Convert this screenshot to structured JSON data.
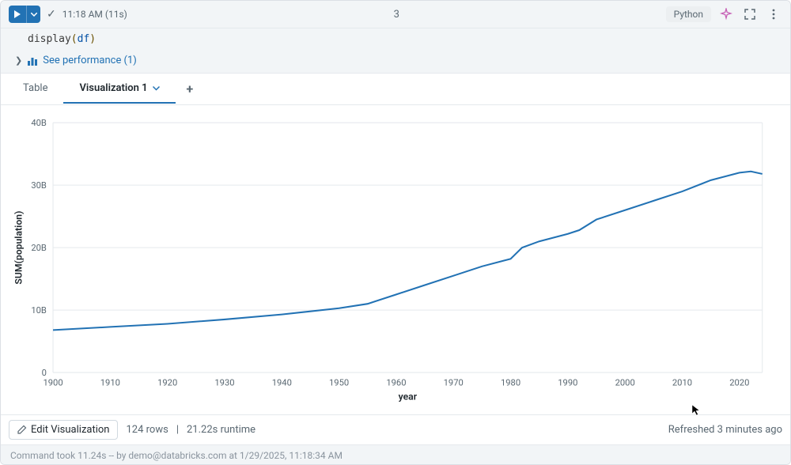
{
  "header": {
    "time_label": "11:18 AM (11s)",
    "cell_index": "3",
    "language": "Python"
  },
  "code": {
    "fn": "display",
    "arg": "df"
  },
  "performance": {
    "label": "See performance (1)"
  },
  "tabs": {
    "table": "Table",
    "viz1": "Visualization 1"
  },
  "chart": {
    "type": "line",
    "xlabel": "year",
    "ylabel": "SUM(population)",
    "line_color": "#2272b4",
    "line_width": 2,
    "grid_color": "#e5e9ed",
    "axis_color": "#b0b8bf",
    "background_color": "#ffffff",
    "xlim": [
      1900,
      2024
    ],
    "ylim": [
      0,
      40
    ],
    "y_unit": "B",
    "xticks": [
      1900,
      1910,
      1920,
      1930,
      1940,
      1950,
      1960,
      1970,
      1980,
      1990,
      2000,
      2010,
      2020
    ],
    "yticks": [
      0,
      10,
      20,
      30,
      40
    ],
    "ytick_labels": [
      "0",
      "10B",
      "20B",
      "30B",
      "40B"
    ],
    "data": [
      {
        "x": 1900,
        "y": 6.8
      },
      {
        "x": 1910,
        "y": 7.3
      },
      {
        "x": 1920,
        "y": 7.8
      },
      {
        "x": 1930,
        "y": 8.5
      },
      {
        "x": 1940,
        "y": 9.3
      },
      {
        "x": 1950,
        "y": 10.3
      },
      {
        "x": 1955,
        "y": 11.0
      },
      {
        "x": 1960,
        "y": 12.5
      },
      {
        "x": 1965,
        "y": 14.0
      },
      {
        "x": 1970,
        "y": 15.5
      },
      {
        "x": 1975,
        "y": 17.0
      },
      {
        "x": 1980,
        "y": 18.2
      },
      {
        "x": 1982,
        "y": 20.0
      },
      {
        "x": 1985,
        "y": 21.0
      },
      {
        "x": 1990,
        "y": 22.2
      },
      {
        "x": 1992,
        "y": 22.8
      },
      {
        "x": 1995,
        "y": 24.5
      },
      {
        "x": 2000,
        "y": 26.0
      },
      {
        "x": 2005,
        "y": 27.5
      },
      {
        "x": 2010,
        "y": 29.0
      },
      {
        "x": 2015,
        "y": 30.8
      },
      {
        "x": 2020,
        "y": 32.0
      },
      {
        "x": 2022,
        "y": 32.2
      },
      {
        "x": 2024,
        "y": 31.8
      }
    ]
  },
  "footer": {
    "edit_label": "Edit Visualization",
    "rows_info": "124 rows",
    "runtime_info": "21.22s runtime",
    "refreshed": "Refreshed 3 minutes ago"
  },
  "cmd_footer": "Command took 11.24s -- by demo@databricks.com at 1/29/2025, 11:18:34 AM"
}
